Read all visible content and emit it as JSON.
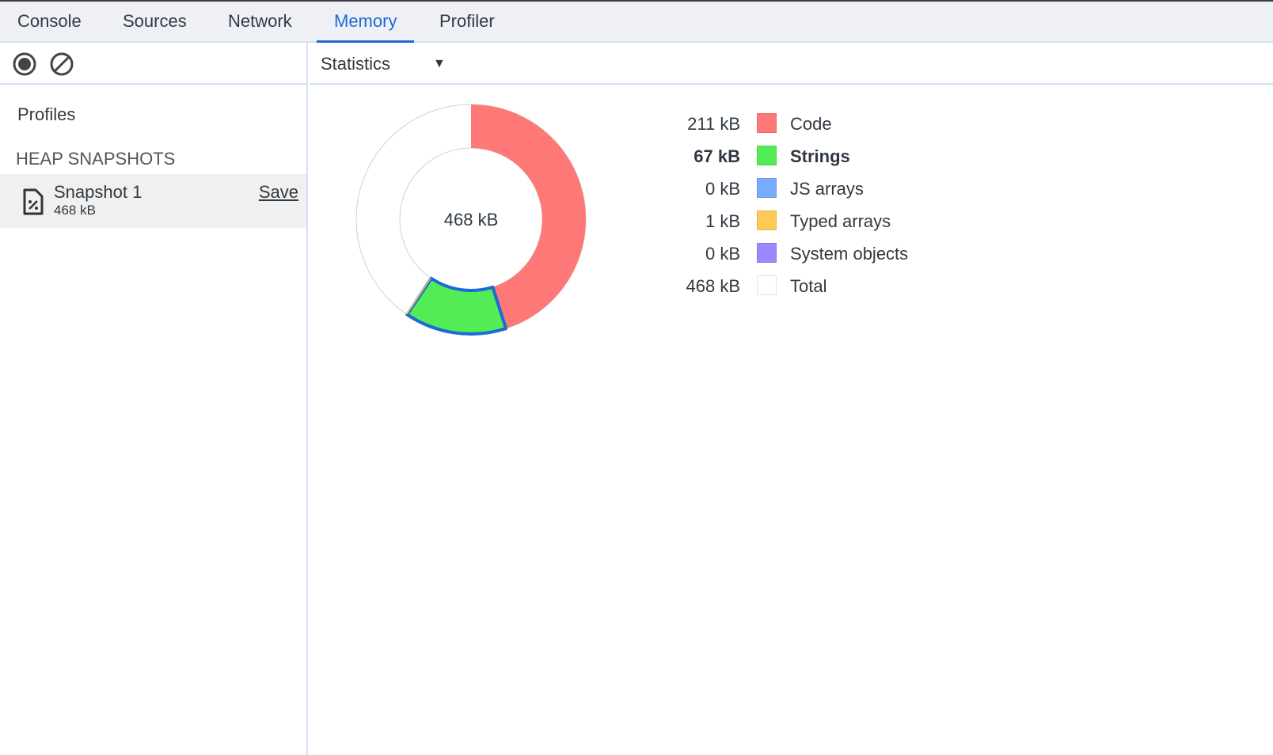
{
  "tabs": [
    {
      "label": "Console",
      "active": false
    },
    {
      "label": "Sources",
      "active": false
    },
    {
      "label": "Network",
      "active": false
    },
    {
      "label": "Memory",
      "active": true
    },
    {
      "label": "Profiler",
      "active": false
    }
  ],
  "sidebar": {
    "record_icon": "record-icon",
    "clear_icon": "clear-icon",
    "profiles_label": "Profiles",
    "section_label": "HEAP SNAPSHOTS",
    "snapshot": {
      "name": "Snapshot 1",
      "size": "468 kB",
      "save_label": "Save",
      "icon": "heap-snapshot-file-icon"
    }
  },
  "main": {
    "view_select": "Statistics"
  },
  "chart_data": {
    "type": "pie",
    "center_label": "468 kB",
    "total": 468,
    "unit": "kB",
    "highlighted": "Strings",
    "highlight_color": "#1a6bd6",
    "slices": [
      {
        "name": "Code",
        "value": 211,
        "label": "211 kB",
        "color": "#ff7878"
      },
      {
        "name": "Strings",
        "value": 67,
        "label": "67 kB",
        "color": "#52ec56"
      },
      {
        "name": "JS arrays",
        "value": 0,
        "label": "0 kB",
        "color": "#7aabff"
      },
      {
        "name": "Typed arrays",
        "value": 1,
        "label": "1 kB",
        "color": "#ffc957"
      },
      {
        "name": "System objects",
        "value": 0,
        "label": "0 kB",
        "color": "#9b8aff"
      }
    ],
    "total_row": {
      "name": "Total",
      "label": "468 kB",
      "color": "#ffffff"
    }
  }
}
